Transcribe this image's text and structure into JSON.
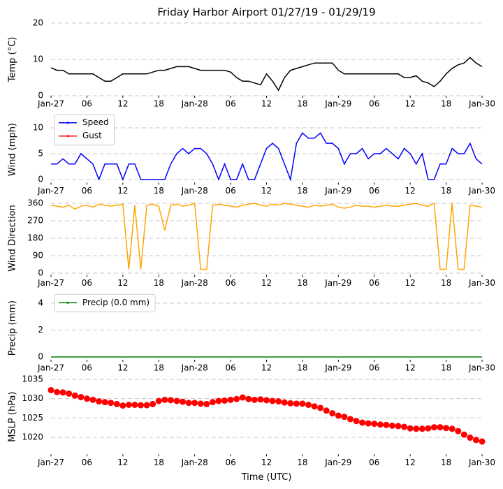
{
  "chart_data": [
    {
      "type": "line",
      "title": "Friday Harbor Airport 01/27/19 - 01/29/19",
      "ylabel": "Temp (°C)",
      "grid": true,
      "x": [
        0,
        1,
        2,
        3,
        4,
        5,
        6,
        7,
        8,
        9,
        10,
        11,
        12,
        13,
        14,
        15,
        16,
        17,
        18,
        19,
        20,
        21,
        22,
        23,
        24,
        25,
        26,
        27,
        28,
        29,
        30,
        31,
        32,
        33,
        34,
        35,
        36,
        37,
        38,
        39,
        40,
        41,
        42,
        43,
        44,
        45,
        46,
        47,
        48,
        49,
        50,
        51,
        52,
        53,
        54,
        55,
        56,
        57,
        58,
        59,
        60,
        61,
        62,
        63,
        64,
        65,
        66,
        67,
        68,
        69,
        70,
        71,
        72
      ],
      "series": [
        {
          "color": "#000000",
          "values": [
            7.7,
            7,
            7,
            6,
            6,
            6,
            6,
            6,
            5,
            4,
            4,
            5,
            6,
            6,
            6,
            6,
            6,
            6.5,
            7,
            7,
            7.5,
            8,
            8,
            8,
            7.5,
            7,
            7,
            7,
            7,
            7,
            6.5,
            5,
            4,
            4,
            3.5,
            3,
            6,
            4,
            1.5,
            5,
            7,
            7.5,
            8,
            8.5,
            9,
            9,
            9,
            9,
            7,
            6,
            6,
            6,
            6,
            6,
            6,
            6,
            6,
            6,
            6,
            5,
            5,
            5.5,
            4,
            3.5,
            2.5,
            4,
            6,
            7.5,
            8.5,
            9,
            10.5,
            9,
            8
          ]
        }
      ],
      "xlim": [
        0,
        72
      ],
      "xticks": [
        {
          "value": 0,
          "label": "Jan-27"
        },
        {
          "value": 6,
          "label": "06"
        },
        {
          "value": 12,
          "label": "12"
        },
        {
          "value": 18,
          "label": "18"
        },
        {
          "value": 24,
          "label": "Jan-28"
        },
        {
          "value": 30,
          "label": "06"
        },
        {
          "value": 36,
          "label": "12"
        },
        {
          "value": 42,
          "label": "18"
        },
        {
          "value": 48,
          "label": "Jan-29"
        },
        {
          "value": 54,
          "label": "06"
        },
        {
          "value": 60,
          "label": "12"
        },
        {
          "value": 66,
          "label": "18"
        },
        {
          "value": 72,
          "label": "Jan-30"
        }
      ],
      "ylim": [
        0,
        20
      ],
      "yticks": [
        0,
        10,
        20
      ]
    },
    {
      "type": "line",
      "ylabel": "Wind (mph)",
      "grid": true,
      "legend": "upper left",
      "x": [
        0,
        1,
        2,
        3,
        4,
        5,
        6,
        7,
        8,
        9,
        10,
        11,
        12,
        13,
        14,
        15,
        16,
        17,
        18,
        19,
        20,
        21,
        22,
        23,
        24,
        25,
        26,
        27,
        28,
        29,
        30,
        31,
        32,
        33,
        34,
        35,
        36,
        37,
        38,
        39,
        40,
        41,
        42,
        43,
        44,
        45,
        46,
        47,
        48,
        49,
        50,
        51,
        52,
        53,
        54,
        55,
        56,
        57,
        58,
        59,
        60,
        61,
        62,
        63,
        64,
        65,
        66,
        67,
        68,
        69,
        70,
        71,
        72
      ],
      "series": [
        {
          "name": "Speed",
          "color": "#0000ff",
          "values": [
            3,
            3,
            4,
            3,
            3,
            5,
            4,
            3,
            0,
            3,
            3,
            3,
            0,
            3,
            3,
            0,
            0,
            0,
            0,
            0,
            3,
            5,
            6,
            5,
            6,
            6,
            5,
            3,
            0,
            3,
            0,
            0,
            3,
            0,
            0,
            3,
            6,
            7,
            6,
            3,
            0,
            7,
            9,
            8,
            8,
            9,
            7,
            7,
            6,
            3,
            5,
            5,
            6,
            4,
            5,
            5,
            6,
            5,
            4,
            6,
            5,
            3,
            5,
            0,
            0,
            3,
            3,
            6,
            5,
            5,
            7,
            4,
            3
          ]
        },
        {
          "name": "Gust",
          "color": "#ff0000",
          "values": [
            null,
            null,
            null,
            null,
            null,
            null,
            null,
            null,
            null,
            null,
            null,
            null,
            null,
            null,
            null,
            null,
            null,
            null,
            null,
            null,
            null,
            null,
            null,
            null,
            null,
            null,
            null,
            null,
            null,
            null,
            null,
            null,
            null,
            null,
            null,
            null,
            null,
            null,
            null,
            null,
            null,
            null,
            null,
            null,
            null,
            null,
            null,
            null,
            null,
            null,
            null,
            null,
            null,
            null,
            null,
            null,
            null,
            null,
            null,
            null,
            null,
            null,
            null,
            null,
            null,
            null,
            null,
            null,
            null,
            null,
            null,
            null,
            null
          ]
        }
      ],
      "xlim": [
        0,
        72
      ],
      "xticks": [
        {
          "value": 0,
          "label": "Jan-27"
        },
        {
          "value": 6,
          "label": "06"
        },
        {
          "value": 12,
          "label": "12"
        },
        {
          "value": 18,
          "label": "18"
        },
        {
          "value": 24,
          "label": "Jan-28"
        },
        {
          "value": 30,
          "label": "06"
        },
        {
          "value": 36,
          "label": "12"
        },
        {
          "value": 42,
          "label": "18"
        },
        {
          "value": 48,
          "label": "Jan-29"
        },
        {
          "value": 54,
          "label": "06"
        },
        {
          "value": 60,
          "label": "12"
        },
        {
          "value": 66,
          "label": "18"
        },
        {
          "value": 72,
          "label": "Jan-30"
        }
      ],
      "ylim": [
        -0.6,
        12.2
      ],
      "yticks": [
        0,
        5,
        10
      ]
    },
    {
      "type": "line",
      "ylabel": "Wind Direction",
      "grid": true,
      "x": [
        0,
        1,
        2,
        3,
        4,
        5,
        6,
        7,
        8,
        9,
        10,
        11,
        12,
        13,
        14,
        15,
        16,
        17,
        18,
        19,
        20,
        21,
        22,
        23,
        24,
        25,
        26,
        27,
        28,
        29,
        30,
        31,
        32,
        33,
        34,
        35,
        36,
        37,
        38,
        39,
        40,
        41,
        42,
        43,
        44,
        45,
        46,
        47,
        48,
        49,
        50,
        51,
        52,
        53,
        54,
        55,
        56,
        57,
        58,
        59,
        60,
        61,
        62,
        63,
        64,
        65,
        66,
        67,
        68,
        69,
        70,
        71,
        72
      ],
      "series": [
        {
          "color": "#ffa500",
          "values": [
            350,
            345,
            340,
            350,
            330,
            345,
            350,
            340,
            355,
            350,
            345,
            350,
            355,
            20,
            350,
            20,
            350,
            355,
            345,
            220,
            350,
            355,
            345,
            350,
            360,
            20,
            20,
            350,
            355,
            350,
            345,
            340,
            350,
            355,
            360,
            350,
            345,
            355,
            350,
            360,
            355,
            350,
            345,
            340,
            350,
            345,
            350,
            355,
            340,
            335,
            340,
            350,
            345,
            345,
            340,
            345,
            350,
            345,
            345,
            350,
            355,
            360,
            350,
            345,
            360,
            20,
            20,
            360,
            20,
            20,
            350,
            345,
            340
          ]
        }
      ],
      "xlim": [
        0,
        72
      ],
      "xticks": [
        {
          "value": 0,
          "label": "Jan-27"
        },
        {
          "value": 6,
          "label": "06"
        },
        {
          "value": 12,
          "label": "12"
        },
        {
          "value": 18,
          "label": "18"
        },
        {
          "value": 24,
          "label": "Jan-28"
        },
        {
          "value": 30,
          "label": "06"
        },
        {
          "value": 36,
          "label": "12"
        },
        {
          "value": 42,
          "label": "18"
        },
        {
          "value": 48,
          "label": "Jan-29"
        },
        {
          "value": 54,
          "label": "06"
        },
        {
          "value": 60,
          "label": "12"
        },
        {
          "value": 66,
          "label": "18"
        },
        {
          "value": 72,
          "label": "Jan-30"
        }
      ],
      "ylim": [
        -9,
        369
      ],
      "yticks": [
        0,
        90,
        180,
        270,
        360
      ]
    },
    {
      "type": "line",
      "ylabel": "Precip (mm)",
      "grid": true,
      "legend": "upper left",
      "x": [
        0,
        1,
        2,
        3,
        4,
        5,
        6,
        7,
        8,
        9,
        10,
        11,
        12,
        13,
        14,
        15,
        16,
        17,
        18,
        19,
        20,
        21,
        22,
        23,
        24,
        25,
        26,
        27,
        28,
        29,
        30,
        31,
        32,
        33,
        34,
        35,
        36,
        37,
        38,
        39,
        40,
        41,
        42,
        43,
        44,
        45,
        46,
        47,
        48,
        49,
        50,
        51,
        52,
        53,
        54,
        55,
        56,
        57,
        58,
        59,
        60,
        61,
        62,
        63,
        64,
        65,
        66,
        67,
        68,
        69,
        70,
        71,
        72
      ],
      "series": [
        {
          "name": "Precip (0.0 mm)",
          "color": "#008000",
          "values": [
            0,
            0,
            0,
            0,
            0,
            0,
            0,
            0,
            0,
            0,
            0,
            0,
            0,
            0,
            0,
            0,
            0,
            0,
            0,
            0,
            0,
            0,
            0,
            0,
            0,
            0,
            0,
            0,
            0,
            0,
            0,
            0,
            0,
            0,
            0,
            0,
            0,
            0,
            0,
            0,
            0,
            0,
            0,
            0,
            0,
            0,
            0,
            0,
            0,
            0,
            0,
            0,
            0,
            0,
            0,
            0,
            0,
            0,
            0,
            0,
            0,
            0,
            0,
            0,
            0,
            0,
            0,
            0,
            0,
            0,
            0,
            0,
            0
          ]
        }
      ],
      "xlim": [
        0,
        72
      ],
      "xticks": [
        {
          "value": 0,
          "label": "Jan-27"
        },
        {
          "value": 6,
          "label": "06"
        },
        {
          "value": 12,
          "label": "12"
        },
        {
          "value": 18,
          "label": "18"
        },
        {
          "value": 24,
          "label": "Jan-28"
        },
        {
          "value": 30,
          "label": "06"
        },
        {
          "value": 36,
          "label": "12"
        },
        {
          "value": 42,
          "label": "18"
        },
        {
          "value": 48,
          "label": "Jan-29"
        },
        {
          "value": 54,
          "label": "06"
        },
        {
          "value": 60,
          "label": "12"
        },
        {
          "value": 66,
          "label": "18"
        },
        {
          "value": 72,
          "label": "Jan-30"
        }
      ],
      "ylim": [
        -0.2,
        4.5
      ],
      "yticks": [
        0,
        2,
        4
      ]
    },
    {
      "type": "scatter",
      "ylabel": "MSLP (hPa)",
      "xlabel": "Time (UTC)",
      "grid": true,
      "x": [
        0,
        1,
        2,
        3,
        4,
        5,
        6,
        7,
        8,
        9,
        10,
        11,
        12,
        13,
        14,
        15,
        16,
        17,
        18,
        19,
        20,
        21,
        22,
        23,
        24,
        25,
        26,
        27,
        28,
        29,
        30,
        31,
        32,
        33,
        34,
        35,
        36,
        37,
        38,
        39,
        40,
        41,
        42,
        43,
        44,
        45,
        46,
        47,
        48,
        49,
        50,
        51,
        52,
        53,
        54,
        55,
        56,
        57,
        58,
        59,
        60,
        61,
        62,
        63,
        64,
        65,
        66,
        67,
        68,
        69,
        70,
        71,
        72
      ],
      "series": [
        {
          "color": "#ff0000",
          "values": [
            1032.2,
            1031.7,
            1031.6,
            1031.3,
            1030.8,
            1030.4,
            1030,
            1029.7,
            1029.3,
            1029.1,
            1028.9,
            1028.6,
            1028.2,
            1028.4,
            1028.4,
            1028.3,
            1028.3,
            1028.6,
            1029.4,
            1029.7,
            1029.6,
            1029.4,
            1029.2,
            1028.9,
            1028.9,
            1028.7,
            1028.6,
            1029.1,
            1029.4,
            1029.5,
            1029.7,
            1029.9,
            1030.3,
            1029.9,
            1029.7,
            1029.8,
            1029.6,
            1029.4,
            1029.3,
            1029,
            1028.8,
            1028.7,
            1028.7,
            1028.4,
            1028,
            1027.6,
            1026.9,
            1026.2,
            1025.6,
            1025.3,
            1024.7,
            1024.2,
            1023.8,
            1023.6,
            1023.5,
            1023.3,
            1023.2,
            1023,
            1022.9,
            1022.7,
            1022.3,
            1022.2,
            1022.2,
            1022.3,
            1022.6,
            1022.6,
            1022.4,
            1022.2,
            1021.6,
            1020.7,
            1019.9,
            1019.3,
            1018.9
          ]
        }
      ],
      "xlim": [
        0,
        72
      ],
      "xticks": [
        {
          "value": 0,
          "label": "Jan-27"
        },
        {
          "value": 6,
          "label": "06"
        },
        {
          "value": 12,
          "label": "12"
        },
        {
          "value": 18,
          "label": "18"
        },
        {
          "value": 24,
          "label": "Jan-28"
        },
        {
          "value": 30,
          "label": "06"
        },
        {
          "value": 36,
          "label": "12"
        },
        {
          "value": 42,
          "label": "18"
        },
        {
          "value": 48,
          "label": "Jan-29"
        },
        {
          "value": 54,
          "label": "06"
        },
        {
          "value": 60,
          "label": "12"
        },
        {
          "value": 66,
          "label": "18"
        },
        {
          "value": 72,
          "label": "Jan-30"
        }
      ],
      "ylim": [
        1015.6,
        1035
      ],
      "yticks": [
        1020,
        1025,
        1030,
        1035
      ]
    }
  ]
}
